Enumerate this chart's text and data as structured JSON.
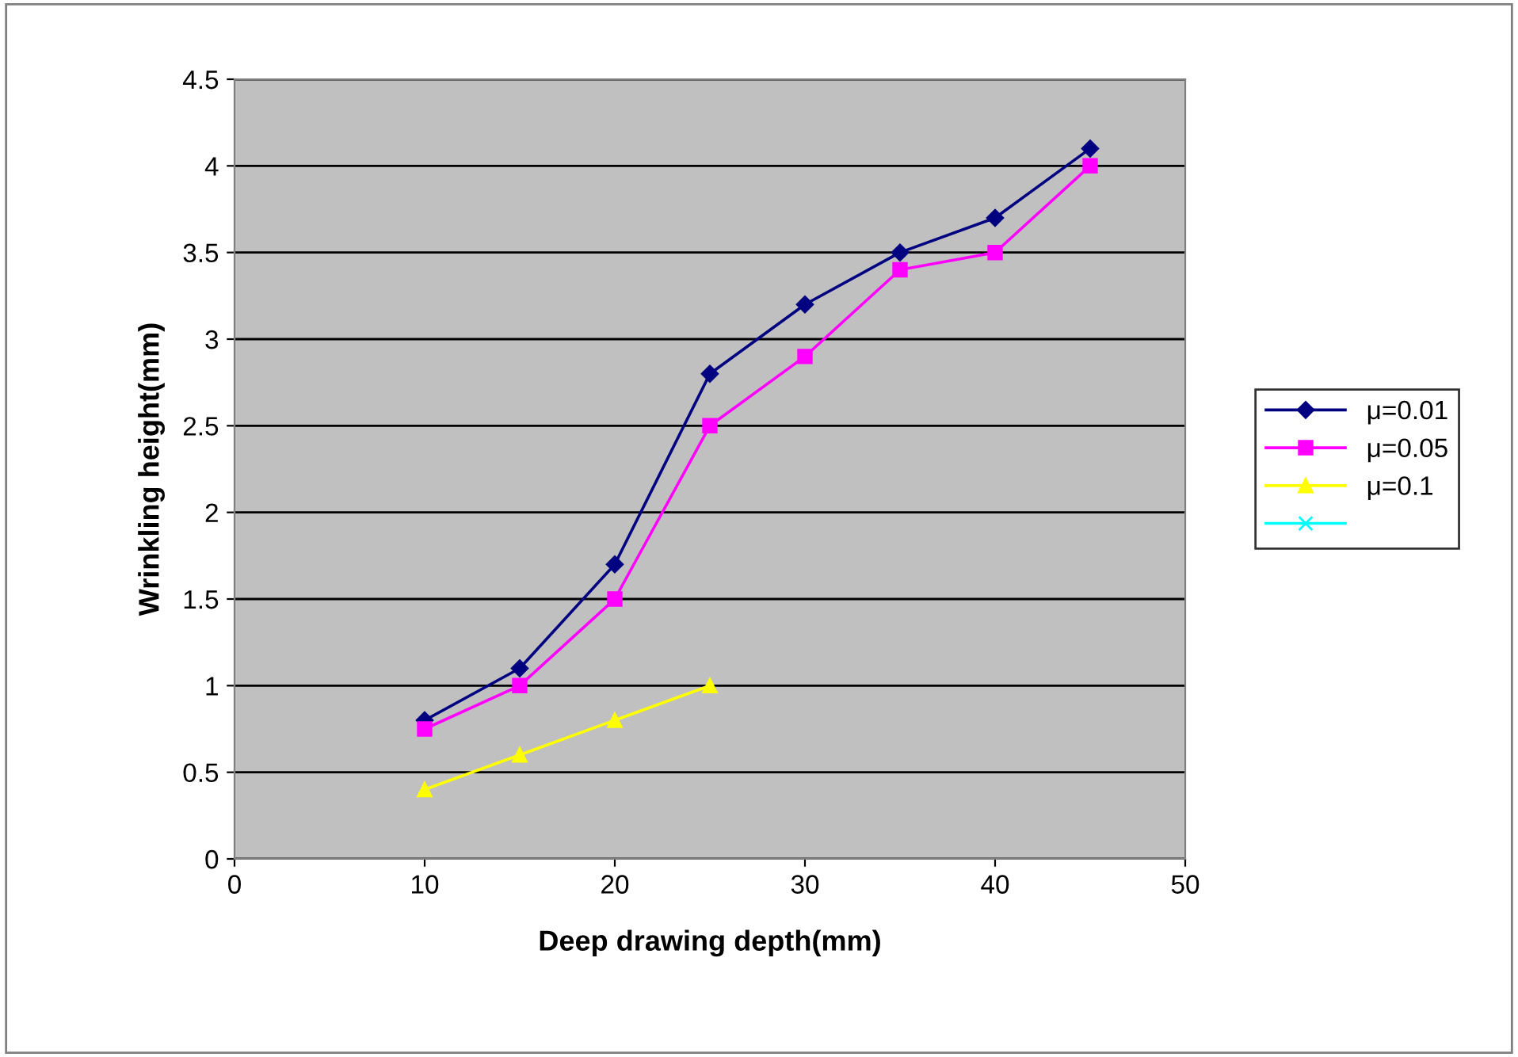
{
  "chart_data": {
    "type": "line",
    "xlabel": "Deep drawing depth(mm)",
    "ylabel": "Wrinkling height(mm)",
    "x": [
      10,
      15,
      20,
      25,
      30,
      35,
      40,
      45
    ],
    "xlim": [
      0,
      50
    ],
    "xticks": [
      0,
      10,
      20,
      30,
      40,
      50
    ],
    "ylim": [
      0,
      4.5
    ],
    "yticks": [
      0,
      0.5,
      1,
      1.5,
      2,
      2.5,
      3,
      3.5,
      4,
      4.5
    ],
    "grid": "y",
    "legend": "right",
    "series": [
      {
        "name": "μ=0.01",
        "color": "#000080",
        "marker": "diamond",
        "values": [
          0.8,
          1.1,
          1.7,
          2.8,
          3.2,
          3.5,
          3.7,
          4.1
        ]
      },
      {
        "name": "μ=0.05",
        "color": "#ff00ff",
        "marker": "square",
        "values": [
          0.75,
          1.0,
          1.5,
          2.5,
          2.9,
          3.4,
          3.5,
          4.0
        ]
      },
      {
        "name": "μ=0.1",
        "color": "#ffff00",
        "marker": "triangle",
        "values": [
          0.4,
          0.6,
          0.8,
          1.0,
          null,
          null,
          null,
          null
        ]
      },
      {
        "color": "#00ffff",
        "marker": "cross",
        "values": [
          null,
          null,
          null,
          null,
          null,
          null,
          null,
          null
        ]
      }
    ]
  }
}
